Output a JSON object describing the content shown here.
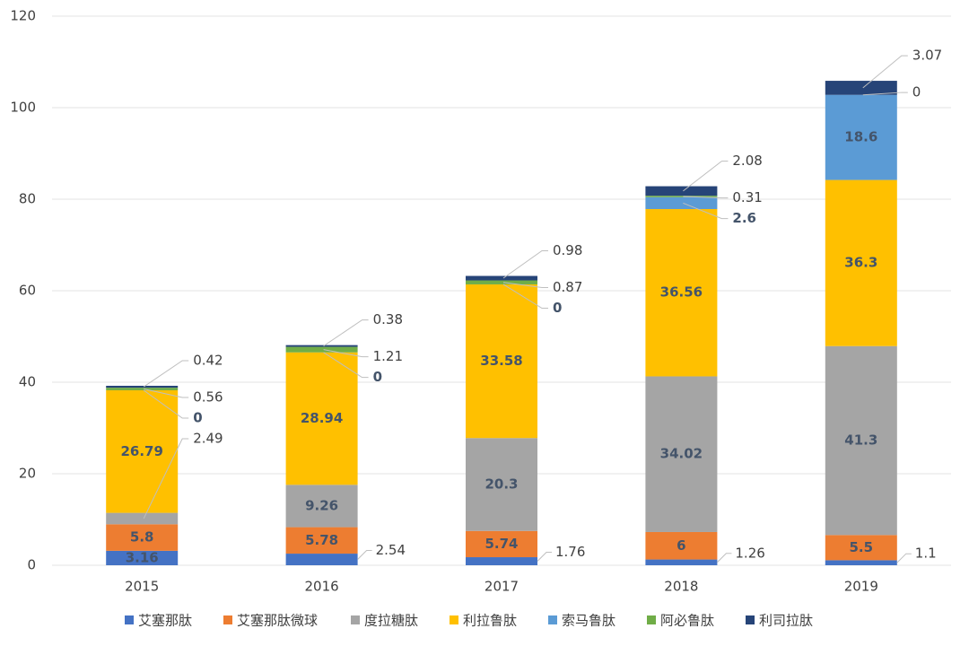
{
  "chart_data": {
    "type": "stacked_bar",
    "categories": [
      "2015",
      "2016",
      "2017",
      "2018",
      "2019"
    ],
    "series": [
      {
        "name": "艾塞那肽",
        "color": "#4472c4",
        "values": [
          3.16,
          2.54,
          1.76,
          1.26,
          1.1
        ]
      },
      {
        "name": "艾塞那肽微球",
        "color": "#ed7d31",
        "values": [
          5.8,
          5.78,
          5.74,
          6,
          5.5
        ]
      },
      {
        "name": "度拉糖肽",
        "color": "#a5a5a5",
        "values": [
          2.49,
          9.26,
          20.3,
          34.02,
          41.3
        ]
      },
      {
        "name": "利拉鲁肽",
        "color": "#ffc000",
        "values": [
          26.79,
          28.94,
          33.58,
          36.56,
          36.3
        ]
      },
      {
        "name": "索马鲁肽",
        "color": "#5b9bd5",
        "values": [
          0,
          0,
          0,
          2.6,
          18.6
        ]
      },
      {
        "name": "阿必鲁肽",
        "color": "#70ad47",
        "values": [
          0.56,
          1.21,
          0.87,
          0.31,
          0
        ]
      },
      {
        "name": "利司拉肽",
        "color": "#264478",
        "values": [
          0.42,
          0.38,
          0.98,
          2.08,
          3.07
        ]
      }
    ],
    "ylim": [
      0,
      120
    ],
    "yticks": [
      0,
      20,
      40,
      60,
      80,
      100,
      120
    ],
    "grid": true,
    "legend": "bottom"
  }
}
